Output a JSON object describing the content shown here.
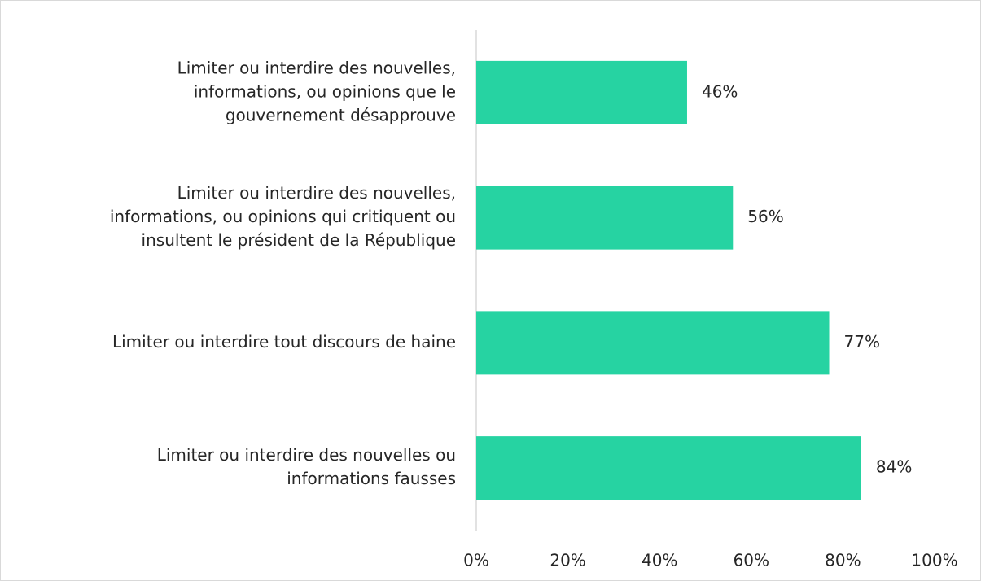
{
  "chart_data": {
    "type": "bar",
    "orientation": "horizontal",
    "categories": [
      [
        "Limiter ou interdire des nouvelles,",
        "informations, ou opinions que le",
        "gouvernement désapprouve"
      ],
      [
        "Limiter ou interdire des nouvelles,",
        "informations, ou opinions qui critiquent ou",
        "insultent le président de la République"
      ],
      [
        "Limiter ou interdire tout discours de haine"
      ],
      [
        "Limiter ou interdire des nouvelles ou",
        "informations fausses"
      ]
    ],
    "values": [
      46,
      56,
      77,
      84
    ],
    "value_labels": [
      "46%",
      "56%",
      "77%",
      "84%"
    ],
    "color": "#26d3a2",
    "xlim": [
      0,
      100
    ],
    "xticks": [
      {
        "value": 0,
        "label": "0%"
      },
      {
        "value": 20,
        "label": "20%"
      },
      {
        "value": 40,
        "label": "40%"
      },
      {
        "value": 60,
        "label": "60%"
      },
      {
        "value": 80,
        "label": "80%"
      },
      {
        "value": 100,
        "label": "100%"
      }
    ],
    "grid": false
  }
}
